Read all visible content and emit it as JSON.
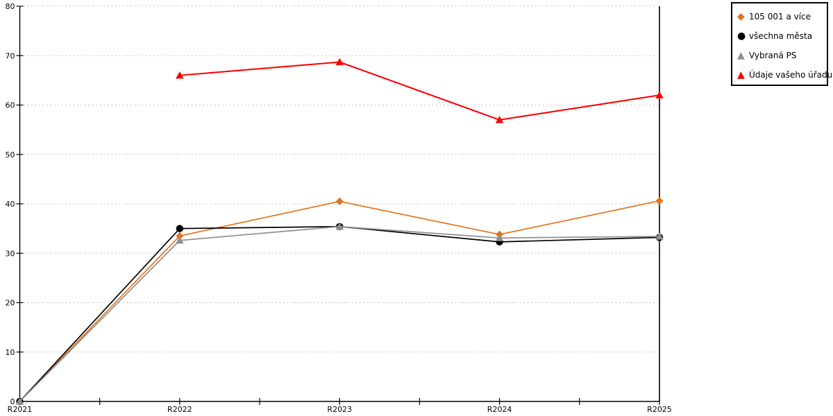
{
  "chart_data": {
    "type": "line",
    "title": "",
    "xlabel": "",
    "ylabel": "",
    "categories": [
      "R2021",
      "R2022",
      "R2023",
      "R2024",
      "R2025"
    ],
    "series": [
      {
        "name": "105 001 a více",
        "marker": "diamond",
        "color": "#E2751C",
        "values": [
          0,
          33.5,
          40.5,
          33.8,
          40.6
        ]
      },
      {
        "name": "všechna města",
        "marker": "circle",
        "color": "#000000",
        "values": [
          0,
          35.0,
          35.4,
          32.3,
          33.2
        ]
      },
      {
        "name": "Vybraná PS",
        "marker": "triangle",
        "color": "#8F8F8F",
        "values": [
          0,
          32.6,
          35.4,
          33.1,
          33.4
        ]
      },
      {
        "name": "Údaje vašeho úřadu",
        "marker": "triangle",
        "color": "#FF0000",
        "values": [
          null,
          66,
          68.7,
          57,
          62
        ]
      }
    ],
    "ylim": [
      0,
      80
    ],
    "ytick_step": 10,
    "ytick_labels": [
      "0",
      "10",
      "20",
      "30",
      "40",
      "50",
      "60",
      "70",
      "80"
    ],
    "grid": "horizontal-dotted",
    "legend_position": "top-right"
  },
  "colors": {
    "background": "#FFFFFF",
    "axis": "#000000",
    "grid": "#B3B3B3",
    "legend_border": "#000000",
    "text": "#000000"
  }
}
